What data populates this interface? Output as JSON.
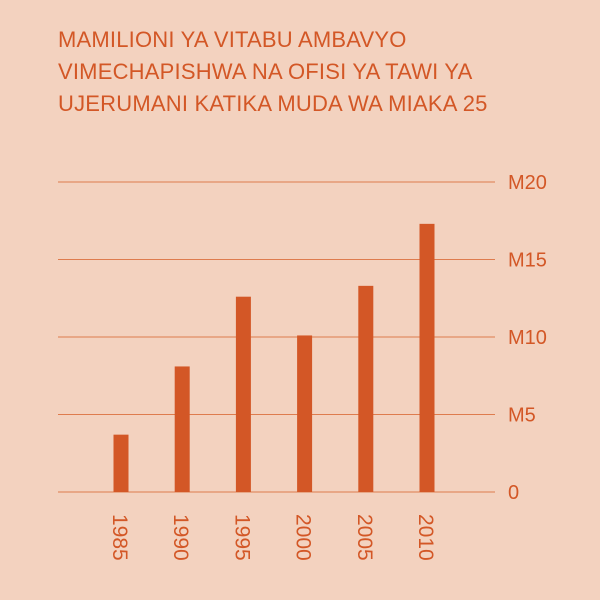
{
  "chart_data": {
    "type": "bar",
    "title_lines": [
      "MAMILIONI YA VITABU AMBAVYO",
      "VIMECHAPISHWA NA OFISI YA TAWI YA",
      "UJERUMANI KATIKA MUDA WA MIAKA 25"
    ],
    "categories": [
      "1985",
      "1990",
      "1995",
      "2000",
      "2005",
      "2010"
    ],
    "values": [
      3.7,
      8.1,
      12.6,
      10.1,
      13.3,
      17.3
    ],
    "ylim": [
      0,
      20
    ],
    "yticks": [
      {
        "value": 0,
        "label": "0"
      },
      {
        "value": 5,
        "label": "M5"
      },
      {
        "value": 10,
        "label": "M10"
      },
      {
        "value": 15,
        "label": "M15"
      },
      {
        "value": 20,
        "label": "M20"
      }
    ],
    "grid": true,
    "colors": {
      "background": "#f3d2bf",
      "bar": "#d35726",
      "text": "#d35726",
      "grid": "#de7c4e"
    }
  }
}
